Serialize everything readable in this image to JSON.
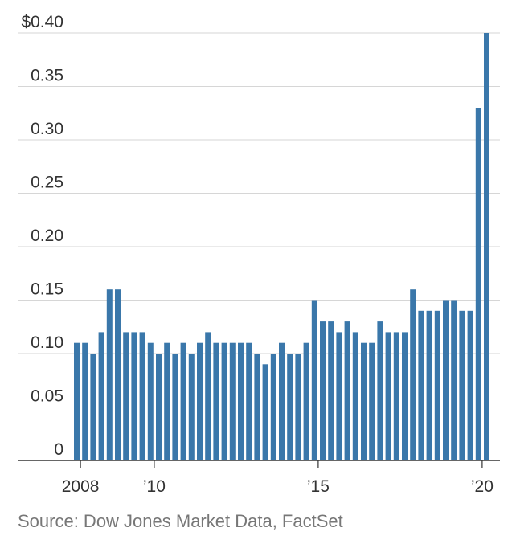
{
  "chart_data": {
    "type": "bar",
    "y_tick_labels": [
      "0",
      "0.05",
      "0.10",
      "0.15",
      "0.20",
      "0.25",
      "0.30",
      "0.35",
      "$0.40"
    ],
    "y_ticks": [
      0,
      0.05,
      0.1,
      0.15,
      0.2,
      0.25,
      0.3,
      0.35,
      0.4
    ],
    "ylim": [
      0,
      0.4
    ],
    "x_tick_labels": [
      "2008",
      "’10",
      "’15",
      "’20"
    ],
    "x_tick_bar_index": [
      1,
      10,
      30,
      50
    ],
    "values": [
      0.11,
      0.11,
      0.1,
      0.12,
      0.16,
      0.16,
      0.12,
      0.12,
      0.12,
      0.11,
      0.1,
      0.11,
      0.1,
      0.11,
      0.1,
      0.11,
      0.12,
      0.11,
      0.11,
      0.11,
      0.11,
      0.11,
      0.1,
      0.09,
      0.1,
      0.11,
      0.1,
      0.1,
      0.11,
      0.15,
      0.13,
      0.13,
      0.12,
      0.13,
      0.12,
      0.11,
      0.11,
      0.13,
      0.12,
      0.12,
      0.12,
      0.16,
      0.14,
      0.14,
      0.14,
      0.15,
      0.15,
      0.14,
      0.14,
      0.33,
      0.4
    ],
    "bar_color": "#3a77aa",
    "grid": true
  },
  "source": "Source: Dow Jones Market Data, FactSet"
}
